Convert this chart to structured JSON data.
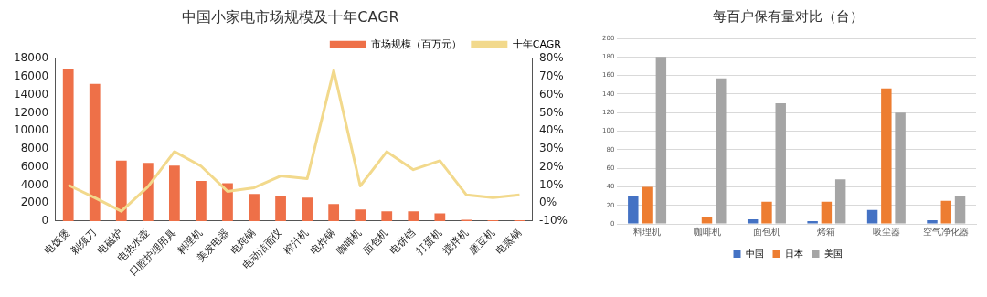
{
  "chart_data": [
    {
      "type": "bar",
      "title": "中国小家电市场规模及十年CAGR",
      "categories": [
        "电饭煲",
        "剃须刀",
        "电磁炉",
        "电热水壶",
        "口腔护理用具",
        "料理机",
        "美发电器",
        "电炖锅",
        "电动洁面仪",
        "榨汁机",
        "电炸锅",
        "咖啡机",
        "面包机",
        "电饼铛",
        "打蛋机",
        "搅拌机",
        "磨豆机",
        "电蒸锅"
      ],
      "series": [
        {
          "name": "市场规模（百万元）",
          "color": "#ee7048",
          "values": [
            16800,
            15200,
            6700,
            6450,
            6150,
            4450,
            4200,
            3000,
            2750,
            2600,
            1900,
            1300,
            1100,
            1100,
            850,
            150,
            100,
            100
          ]
        },
        {
          "name": "十年CAGR",
          "type": "line",
          "axis": "y2",
          "color": "#f2d98c",
          "values": [
            10,
            3,
            -4.5,
            9,
            28.5,
            20.5,
            6.5,
            8.5,
            15,
            13.5,
            73.5,
            9.5,
            28.5,
            18.5,
            23.5,
            4.5,
            3,
            4.5
          ]
        }
      ],
      "ylim": [
        0,
        18000
      ],
      "yticks": [
        0,
        2000,
        4000,
        6000,
        8000,
        10000,
        12000,
        14000,
        16000,
        18000
      ],
      "y2lim": [
        -10,
        80
      ],
      "y2ticks": [
        {
          "value": -10,
          "label": "-10%"
        },
        {
          "value": 0,
          "label": "0%"
        },
        {
          "value": 10,
          "label": "10%"
        },
        {
          "value": 20,
          "label": "20%"
        },
        {
          "value": 30,
          "label": "30%"
        },
        {
          "value": 40,
          "label": "40%"
        },
        {
          "value": 50,
          "label": "50%"
        },
        {
          "value": 60,
          "label": "60%"
        },
        {
          "value": 70,
          "label": "70%"
        },
        {
          "value": 80,
          "label": "80%"
        }
      ],
      "grid": false,
      "legend": "top right",
      "marker": "none"
    },
    {
      "type": "bar",
      "title": "每百户保有量对比（台）",
      "categories": [
        "料理机",
        "咖啡机",
        "面包机",
        "烤箱",
        "吸尘器",
        "空气净化器"
      ],
      "series": [
        {
          "name": "中国",
          "color": "#4472c4",
          "values": [
            30,
            0,
            5,
            3,
            15,
            4
          ]
        },
        {
          "name": "日本",
          "color": "#ed7d31",
          "values": [
            40,
            8,
            24,
            24,
            146,
            25
          ]
        },
        {
          "name": "美国",
          "color": "#a5a5a5",
          "values": [
            180,
            157,
            130,
            48,
            120,
            30
          ]
        }
      ],
      "ylim": [
        0,
        200
      ],
      "yticks": [
        0,
        20,
        40,
        60,
        80,
        100,
        120,
        140,
        160,
        180,
        200
      ],
      "grid": "y",
      "legend": "bottom"
    }
  ]
}
